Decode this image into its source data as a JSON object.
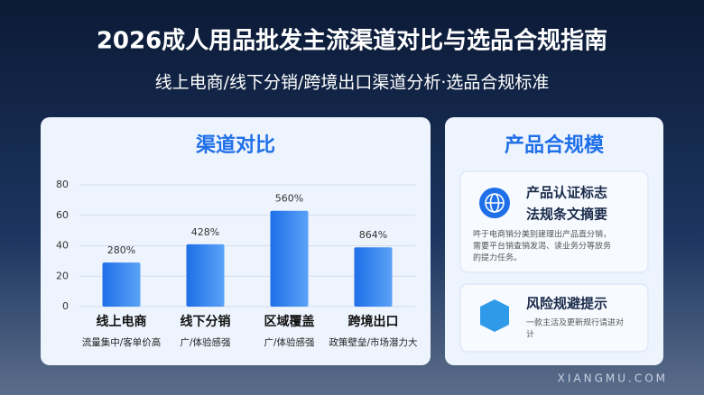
{
  "header": {
    "title": "2026成人用品批发主流渠道对比与选品合规指南",
    "subtitle": "线上电商/线下分销/跨境出口渠道分析·选品合规标准"
  },
  "chart_data": {
    "type": "bar",
    "title": "渠道对比",
    "categories": [
      "线上电商",
      "线下分销",
      "区域覆盖",
      "跨境出口"
    ],
    "category_notes": [
      "流量集中/客单价高",
      "广/体验感强",
      "广/体验感强",
      "政策壁垒/市场潜力大"
    ],
    "values": [
      29,
      41,
      63,
      39
    ],
    "annotations": [
      "280%",
      "428%",
      "560%",
      "864%"
    ],
    "color": "#2f7df0",
    "ylim": [
      0,
      80
    ],
    "yticks": [
      0,
      20,
      40,
      60,
      80
    ],
    "grid": true
  },
  "panel": {
    "title": "产品合规模",
    "cards": [
      {
        "title_lines": [
          "产品认证标志",
          "法规条文摘要"
        ],
        "text_lines": [
          "吽于电商销分美别建理出产品直分销，",
          "需要平台销查销发渴、读业务分等放务",
          "的提力任务。"
        ]
      },
      {
        "title_lines": [
          "风险规避提示"
        ],
        "text_lines": [
          "一款主活及更新规行请进对",
          "计"
        ]
      }
    ]
  },
  "watermark": "XIANGMU.COM"
}
